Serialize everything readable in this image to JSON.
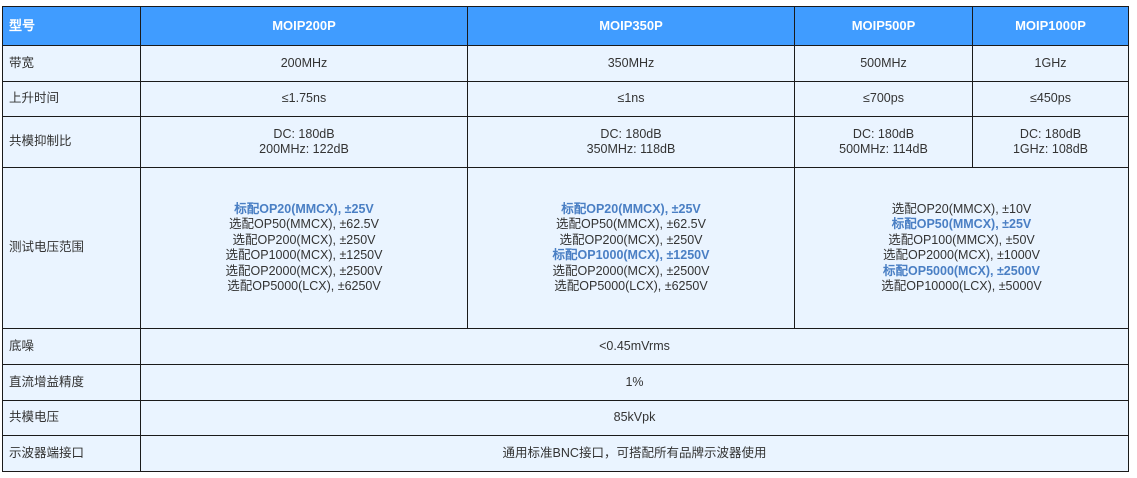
{
  "header": {
    "label": "型号",
    "models": [
      "MOIP200P",
      "MOIP350P",
      "MOIP500P",
      "MOIP1000P"
    ]
  },
  "rows": {
    "bandwidth": {
      "label": "带宽",
      "values": [
        "200MHz",
        "350MHz",
        "500MHz",
        "1GHz"
      ]
    },
    "rise_time": {
      "label": "上升时间",
      "values": [
        "≤1.75ns",
        "≤1ns",
        "≤700ps",
        "≤450ps"
      ]
    },
    "cmrr": {
      "label": "共模抑制比",
      "values": [
        [
          "DC: 180dB",
          "200MHz: 122dB"
        ],
        [
          "DC: 180dB",
          "350MHz: 118dB"
        ],
        [
          "DC: 180dB",
          "500MHz: 114dB"
        ],
        [
          "DC: 180dB",
          "1GHz: 108dB"
        ]
      ]
    },
    "voltage_range": {
      "label": "测试电压范围",
      "groups": [
        [
          {
            "text": "标配OP20(MMCX), ±25V",
            "standard": true
          },
          {
            "text": "选配OP50(MMCX), ±62.5V"
          },
          {
            "text": "选配OP200(MCX), ±250V"
          },
          {
            "text": "选配OP1000(MCX), ±1250V"
          },
          {
            "text": "选配OP2000(MCX), ±2500V"
          },
          {
            "text": "选配OP5000(LCX), ±6250V"
          }
        ],
        [
          {
            "text": "标配OP20(MMCX), ±25V",
            "standard": true
          },
          {
            "text": "选配OP50(MMCX), ±62.5V"
          },
          {
            "text": "选配OP200(MCX), ±250V"
          },
          {
            "text": "标配OP1000(MCX), ±1250V",
            "standard": true
          },
          {
            "text": "选配OP2000(MCX), ±2500V"
          },
          {
            "text": "选配OP5000(LCX), ±6250V"
          }
        ],
        [
          {
            "text": "选配OP20(MMCX), ±10V"
          },
          {
            "text": "标配OP50(MMCX), ±25V",
            "standard": true
          },
          {
            "text": "选配OP100(MMCX), ±50V"
          },
          {
            "text": "选配OP2000(MCX), ±1000V"
          },
          {
            "text": "标配OP5000(MCX), ±2500V",
            "standard": true
          },
          {
            "text": "选配OP10000(LCX), ±5000V"
          }
        ]
      ]
    },
    "noise": {
      "label": "底噪",
      "value": "<0.45mVrms"
    },
    "dc_gain": {
      "label": "直流增益精度",
      "value": "1%"
    },
    "cm_voltage": {
      "label": "共模电压",
      "value": "85kVpk"
    },
    "interface": {
      "label": "示波器端接口",
      "value": "通用标准BNC接口，可搭配所有品牌示波器使用"
    }
  },
  "colors": {
    "header_bg": "#409CFF",
    "cell_bg": "#EAF4FF",
    "highlight": "#4A7FC4"
  }
}
